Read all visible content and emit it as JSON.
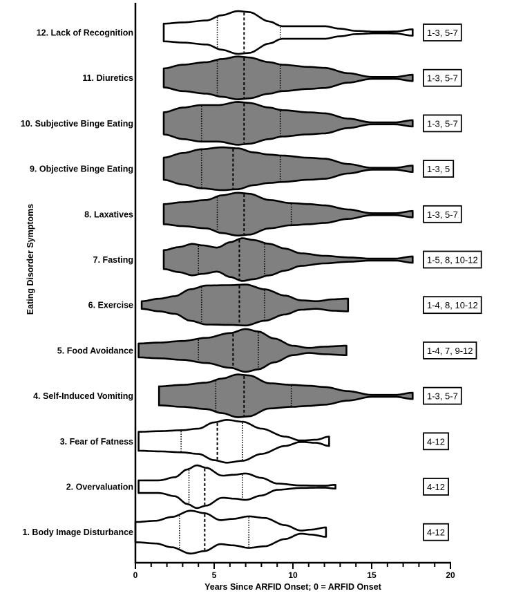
{
  "chart_data": {
    "type": "violin",
    "title": "",
    "xlabel": "Years Since ARFID Onset; 0 = ARFID Onset",
    "ylabel": "Eating Disorder Symptoms",
    "xlim": [
      0,
      20
    ],
    "xticks": [
      0,
      5,
      10,
      15,
      20
    ],
    "minor_tick_step": 1,
    "grid": false,
    "legend": null,
    "fill_colors": {
      "gray": "#808080",
      "white": "#ffffff"
    },
    "stroke_color": "#000000",
    "series": [
      {
        "name": "12. Lack of Recognition",
        "fill": "white",
        "min": 1.8,
        "q1": 5.2,
        "median": 6.9,
        "q3": 9.2,
        "max": 17.6,
        "annotation": "1-3, 5-7",
        "profile": [
          [
            1.8,
            0.28
          ],
          [
            3,
            0.32
          ],
          [
            4.5,
            0.38
          ],
          [
            5.5,
            0.55
          ],
          [
            6.5,
            0.68
          ],
          [
            7.2,
            0.65
          ],
          [
            8.5,
            0.35
          ],
          [
            9.3,
            0.2
          ],
          [
            11,
            0.2
          ],
          [
            12,
            0.2
          ],
          [
            13,
            0.12
          ],
          [
            14,
            0.05
          ],
          [
            15.5,
            0.02
          ],
          [
            16.5,
            0.03
          ],
          [
            17.6,
            0.1
          ]
        ]
      },
      {
        "name": "11. Diuretics",
        "fill": "gray",
        "min": 1.8,
        "q1": 5.2,
        "median": 6.9,
        "q3": 9.2,
        "max": 17.6,
        "annotation": "1-3, 5-7",
        "profile": [
          [
            1.8,
            0.3
          ],
          [
            3,
            0.42
          ],
          [
            4.5,
            0.5
          ],
          [
            5.5,
            0.6
          ],
          [
            6.5,
            0.68
          ],
          [
            7.2,
            0.65
          ],
          [
            8.5,
            0.5
          ],
          [
            9.3,
            0.42
          ],
          [
            11,
            0.35
          ],
          [
            12,
            0.32
          ],
          [
            13.5,
            0.15
          ],
          [
            15,
            0.03
          ],
          [
            16.5,
            0.03
          ],
          [
            17.6,
            0.1
          ]
        ]
      },
      {
        "name": "10. Subjective Binge Eating",
        "fill": "gray",
        "min": 1.8,
        "q1": 4.2,
        "median": 6.9,
        "q3": 9.2,
        "max": 17.6,
        "annotation": "1-3, 5-7",
        "profile": [
          [
            1.8,
            0.35
          ],
          [
            3,
            0.5
          ],
          [
            4.2,
            0.58
          ],
          [
            5.3,
            0.58
          ],
          [
            6.5,
            0.68
          ],
          [
            7.2,
            0.65
          ],
          [
            8.5,
            0.5
          ],
          [
            9.3,
            0.42
          ],
          [
            11,
            0.35
          ],
          [
            12,
            0.32
          ],
          [
            13.5,
            0.15
          ],
          [
            15,
            0.03
          ],
          [
            16.5,
            0.03
          ],
          [
            17.6,
            0.1
          ]
        ]
      },
      {
        "name": "9. Objective Binge Eating",
        "fill": "gray",
        "min": 1.8,
        "q1": 4.2,
        "median": 6.2,
        "q3": 9.2,
        "max": 17.6,
        "annotation": "1-3, 5",
        "profile": [
          [
            1.8,
            0.35
          ],
          [
            3,
            0.5
          ],
          [
            4.2,
            0.62
          ],
          [
            5.5,
            0.68
          ],
          [
            6.5,
            0.65
          ],
          [
            7.5,
            0.52
          ],
          [
            8.5,
            0.45
          ],
          [
            9.3,
            0.42
          ],
          [
            11,
            0.35
          ],
          [
            12,
            0.32
          ],
          [
            13.5,
            0.15
          ],
          [
            15,
            0.03
          ],
          [
            16.5,
            0.03
          ],
          [
            17.6,
            0.1
          ]
        ]
      },
      {
        "name": "8. Laxatives",
        "fill": "gray",
        "min": 1.8,
        "q1": 5.2,
        "median": 6.9,
        "q3": 9.9,
        "max": 17.6,
        "annotation": "1-3, 5-7",
        "profile": [
          [
            1.8,
            0.32
          ],
          [
            3,
            0.38
          ],
          [
            4.5,
            0.45
          ],
          [
            5.5,
            0.6
          ],
          [
            6.5,
            0.68
          ],
          [
            7.2,
            0.65
          ],
          [
            8.5,
            0.45
          ],
          [
            9.9,
            0.35
          ],
          [
            11,
            0.32
          ],
          [
            12,
            0.28
          ],
          [
            13.5,
            0.15
          ],
          [
            15,
            0.03
          ],
          [
            16.5,
            0.03
          ],
          [
            17.6,
            0.1
          ]
        ]
      },
      {
        "name": "7. Fasting",
        "fill": "gray",
        "min": 1.8,
        "q1": 4.0,
        "median": 6.6,
        "q3": 8.2,
        "max": 17.6,
        "annotation": "1-5, 8, 10-12",
        "profile": [
          [
            1.8,
            0.3
          ],
          [
            2.8,
            0.4
          ],
          [
            3.6,
            0.5
          ],
          [
            4.3,
            0.45
          ],
          [
            5.2,
            0.38
          ],
          [
            6,
            0.55
          ],
          [
            6.8,
            0.68
          ],
          [
            7.5,
            0.62
          ],
          [
            8.5,
            0.5
          ],
          [
            9.5,
            0.35
          ],
          [
            10.5,
            0.2
          ],
          [
            12,
            0.12
          ],
          [
            13.5,
            0.07
          ],
          [
            15,
            0.03
          ],
          [
            16.5,
            0.03
          ],
          [
            17.6,
            0.1
          ]
        ]
      },
      {
        "name": "6. Exercise",
        "fill": "gray",
        "min": 0.4,
        "q1": 4.2,
        "median": 6.6,
        "q3": 8.2,
        "max": 13.5,
        "annotation": "1-4, 8, 10-12",
        "profile": [
          [
            0.4,
            0.12
          ],
          [
            1.5,
            0.2
          ],
          [
            2.5,
            0.28
          ],
          [
            3.5,
            0.5
          ],
          [
            4.5,
            0.62
          ],
          [
            6,
            0.63
          ],
          [
            7,
            0.65
          ],
          [
            8.2,
            0.5
          ],
          [
            9.5,
            0.3
          ],
          [
            10.5,
            0.15
          ],
          [
            11.5,
            0.12
          ],
          [
            12.5,
            0.18
          ],
          [
            13.5,
            0.2
          ]
        ]
      },
      {
        "name": "5. Food Avoidance",
        "fill": "gray",
        "min": 0.2,
        "q1": 4.0,
        "median": 6.2,
        "q3": 7.8,
        "max": 13.4,
        "annotation": "1-4, 7, 9-12",
        "profile": [
          [
            0.2,
            0.22
          ],
          [
            1.5,
            0.25
          ],
          [
            3,
            0.3
          ],
          [
            4.5,
            0.4
          ],
          [
            6,
            0.55
          ],
          [
            7,
            0.68
          ],
          [
            7.8,
            0.6
          ],
          [
            8.8,
            0.38
          ],
          [
            10,
            0.15
          ],
          [
            11,
            0.08
          ],
          [
            12,
            0.12
          ],
          [
            13.4,
            0.15
          ]
        ]
      },
      {
        "name": "4. Self-Induced Vomiting",
        "fill": "gray",
        "min": 1.5,
        "q1": 5.1,
        "median": 6.9,
        "q3": 9.9,
        "max": 17.6,
        "annotation": "1-3, 5-7",
        "profile": [
          [
            1.5,
            0.3
          ],
          [
            3,
            0.35
          ],
          [
            4.5,
            0.42
          ],
          [
            5.5,
            0.55
          ],
          [
            6.5,
            0.68
          ],
          [
            7.2,
            0.65
          ],
          [
            8.5,
            0.4
          ],
          [
            9.9,
            0.35
          ],
          [
            11,
            0.32
          ],
          [
            12,
            0.28
          ],
          [
            13.5,
            0.15
          ],
          [
            15,
            0.03
          ],
          [
            16.5,
            0.03
          ],
          [
            17.6,
            0.1
          ]
        ]
      },
      {
        "name": "3. Fear of Fatness",
        "fill": "white",
        "min": 0.2,
        "q1": 2.9,
        "median": 5.2,
        "q3": 6.8,
        "max": 12.3,
        "annotation": "4-12",
        "profile": [
          [
            0.2,
            0.3
          ],
          [
            1.5,
            0.32
          ],
          [
            2.9,
            0.35
          ],
          [
            4,
            0.4
          ],
          [
            5,
            0.6
          ],
          [
            5.8,
            0.68
          ],
          [
            6.8,
            0.62
          ],
          [
            8,
            0.4
          ],
          [
            9.5,
            0.15
          ],
          [
            10.5,
            0.02
          ],
          [
            11.5,
            0.05
          ],
          [
            12.3,
            0.15
          ]
        ]
      },
      {
        "name": "2. Overvaluation",
        "fill": "white",
        "min": 0.2,
        "q1": 3.4,
        "median": 4.4,
        "q3": 6.8,
        "max": 12.7,
        "annotation": "4-12",
        "profile": [
          [
            0.2,
            0.2
          ],
          [
            1.5,
            0.2
          ],
          [
            2.5,
            0.3
          ],
          [
            3.3,
            0.55
          ],
          [
            3.9,
            0.68
          ],
          [
            4.5,
            0.6
          ],
          [
            5.5,
            0.35
          ],
          [
            6.3,
            0.38
          ],
          [
            7,
            0.42
          ],
          [
            8,
            0.28
          ],
          [
            9,
            0.1
          ],
          [
            10.5,
            0.04
          ],
          [
            12,
            0.03
          ],
          [
            12.7,
            0.06
          ]
        ]
      },
      {
        "name": "1. Body Image Disturbance",
        "fill": "white",
        "min": 0.0,
        "q1": 2.8,
        "median": 4.4,
        "q3": 7.2,
        "max": 12.1,
        "annotation": "4-12",
        "profile": [
          [
            0,
            0.32
          ],
          [
            1.3,
            0.36
          ],
          [
            2.3,
            0.48
          ],
          [
            3.5,
            0.68
          ],
          [
            4.4,
            0.6
          ],
          [
            5.4,
            0.38
          ],
          [
            6.2,
            0.42
          ],
          [
            7.2,
            0.5
          ],
          [
            8.2,
            0.45
          ],
          [
            9.5,
            0.22
          ],
          [
            10.5,
            0.05
          ],
          [
            11.2,
            0.08
          ],
          [
            12.1,
            0.15
          ]
        ]
      }
    ]
  }
}
